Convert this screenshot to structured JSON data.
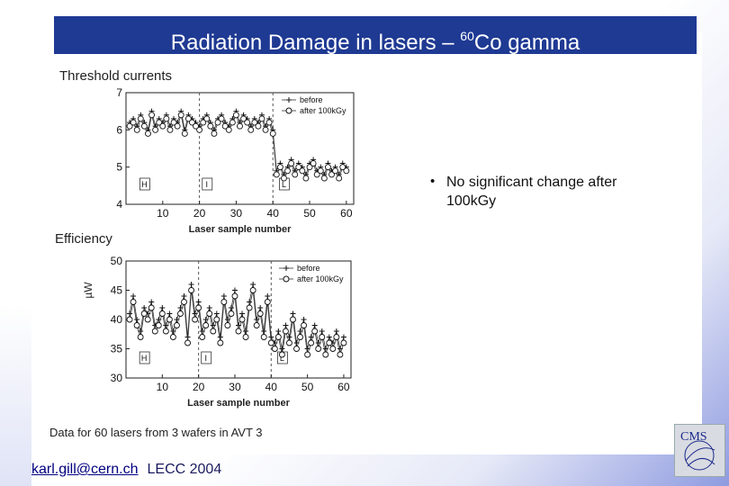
{
  "title": {
    "main": "Radiation Damage in lasers – ",
    "superscript": "60",
    "suffix": "Co gamma"
  },
  "labels": {
    "threshold": "Threshold currents",
    "efficiency": "Efficiency"
  },
  "bullet": {
    "marker": "•",
    "text": "No significant change after 100kGy"
  },
  "footer": {
    "note": "Data for 60 lasers from 3 wafers in AVT 3",
    "email": "karl.gill@cern.ch",
    "conference": "LECC 2004"
  },
  "logo": {
    "text": "CMS"
  },
  "colors": {
    "title_bg": "#1f3a93",
    "title_fg": "#ffffff",
    "footer_link": "#000080"
  },
  "chart_data": [
    {
      "type": "line",
      "xlabel": "Laser sample number",
      "ylabel": "",
      "xlim": [
        0,
        62
      ],
      "ylim": [
        4,
        7
      ],
      "xticks": [
        10,
        20,
        30,
        40,
        50,
        60
      ],
      "yticks": [
        4,
        5,
        6,
        7
      ],
      "vlines": [
        20,
        40
      ],
      "group_labels": [
        "H",
        "I",
        "L"
      ],
      "legend": {
        "position": "top-right",
        "entries": [
          "before",
          "after 100kGy"
        ]
      },
      "x": [
        1,
        2,
        3,
        4,
        5,
        6,
        7,
        8,
        9,
        10,
        11,
        12,
        13,
        14,
        15,
        16,
        17,
        18,
        19,
        20,
        21,
        22,
        23,
        24,
        25,
        26,
        27,
        28,
        29,
        30,
        31,
        32,
        33,
        34,
        35,
        36,
        37,
        38,
        39,
        40,
        41,
        42,
        43,
        44,
        45,
        46,
        47,
        48,
        49,
        50,
        51,
        52,
        53,
        54,
        55,
        56,
        57,
        58,
        59,
        60
      ],
      "series": [
        {
          "name": "before",
          "values": [
            6.2,
            6.3,
            6.1,
            6.4,
            6.2,
            6.0,
            6.5,
            6.1,
            6.3,
            6.2,
            6.4,
            6.1,
            6.3,
            6.2,
            6.5,
            6.0,
            6.4,
            6.3,
            6.2,
            6.1,
            6.3,
            6.4,
            6.2,
            6.0,
            6.3,
            6.4,
            6.2,
            6.1,
            6.3,
            6.5,
            6.2,
            6.4,
            6.3,
            6.1,
            6.3,
            6.2,
            6.4,
            6.1,
            6.3,
            6.0,
            4.9,
            5.1,
            4.8,
            5.0,
            5.2,
            4.9,
            5.1,
            5.0,
            4.8,
            5.1,
            5.2,
            4.9,
            5.0,
            4.8,
            5.1,
            4.9,
            5.0,
            4.8,
            5.1,
            5.0
          ]
        },
        {
          "name": "after 100kGy",
          "values": [
            6.1,
            6.2,
            6.0,
            6.3,
            6.1,
            5.9,
            6.4,
            6.0,
            6.2,
            6.1,
            6.3,
            6.0,
            6.2,
            6.1,
            6.4,
            5.9,
            6.3,
            6.2,
            6.1,
            6.0,
            6.2,
            6.3,
            6.1,
            5.9,
            6.2,
            6.3,
            6.1,
            6.0,
            6.2,
            6.4,
            6.1,
            6.3,
            6.2,
            6.0,
            6.2,
            6.1,
            6.3,
            6.0,
            6.2,
            5.9,
            4.8,
            5.0,
            4.7,
            4.9,
            5.1,
            4.8,
            5.0,
            4.9,
            4.7,
            5.0,
            5.1,
            4.8,
            4.9,
            4.7,
            5.0,
            4.8,
            4.9,
            4.7,
            5.0,
            4.9
          ]
        }
      ]
    },
    {
      "type": "line",
      "xlabel": "Laser sample number",
      "ylabel": "µW",
      "xlim": [
        0,
        62
      ],
      "ylim": [
        30,
        50
      ],
      "xticks": [
        10,
        20,
        30,
        40,
        50,
        60
      ],
      "yticks": [
        30,
        35,
        40,
        45,
        50
      ],
      "vlines": [
        20,
        40
      ],
      "group_labels": [
        "H",
        "I",
        "L"
      ],
      "legend": {
        "position": "top-right",
        "entries": [
          "before",
          "after 100kGy"
        ]
      },
      "x": [
        1,
        2,
        3,
        4,
        5,
        6,
        7,
        8,
        9,
        10,
        11,
        12,
        13,
        14,
        15,
        16,
        17,
        18,
        19,
        20,
        21,
        22,
        23,
        24,
        25,
        26,
        27,
        28,
        29,
        30,
        31,
        32,
        33,
        34,
        35,
        36,
        37,
        38,
        39,
        40,
        41,
        42,
        43,
        44,
        45,
        46,
        47,
        48,
        49,
        50,
        51,
        52,
        53,
        54,
        55,
        56,
        57,
        58,
        59,
        60
      ],
      "series": [
        {
          "name": "before",
          "values": [
            41,
            44,
            40,
            38,
            42,
            41,
            43,
            39,
            40,
            42,
            39,
            41,
            38,
            40,
            42,
            44,
            37,
            46,
            41,
            43,
            38,
            40,
            42,
            39,
            41,
            37,
            44,
            40,
            42,
            45,
            39,
            41,
            38,
            43,
            46,
            40,
            42,
            38,
            44,
            37,
            36,
            38,
            35,
            39,
            37,
            41,
            36,
            38,
            40,
            35,
            37,
            39,
            36,
            38,
            35,
            37,
            36,
            38,
            35,
            37
          ]
        },
        {
          "name": "after 100kGy",
          "values": [
            40,
            43,
            39,
            37,
            41,
            40,
            42,
            38,
            39,
            41,
            38,
            40,
            37,
            39,
            41,
            43,
            36,
            45,
            40,
            42,
            37,
            39,
            41,
            38,
            40,
            36,
            43,
            39,
            41,
            44,
            38,
            40,
            37,
            42,
            45,
            39,
            41,
            37,
            43,
            36,
            35,
            37,
            34,
            38,
            36,
            40,
            35,
            37,
            39,
            34,
            36,
            38,
            35,
            37,
            34,
            36,
            35,
            37,
            34,
            36
          ]
        }
      ]
    }
  ]
}
